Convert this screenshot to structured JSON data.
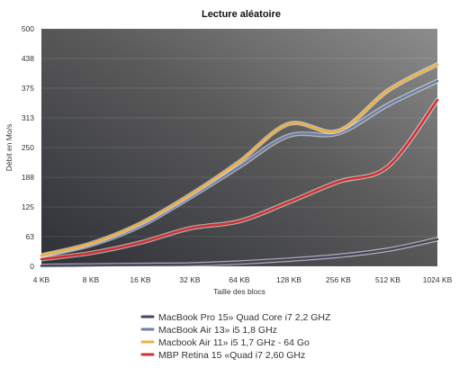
{
  "chart_data": {
    "type": "line",
    "title": "Lecture aléatoire",
    "xlabel": "Taille des blocs",
    "ylabel": "Débit en Mo/s",
    "categories": [
      "4 KB",
      "8 KB",
      "16 KB",
      "32 KB",
      "64 KB",
      "128 KB",
      "256 KB",
      "512 KB",
      "1024 KB"
    ],
    "y_ticks": [
      "0",
      "63",
      "125",
      "188",
      "250",
      "313",
      "375",
      "438",
      "500"
    ],
    "ylim": [
      0,
      500
    ],
    "grid": "horizontal",
    "legend_position": "bottom",
    "series": [
      {
        "name": "MacBook Pro 15» Quad Core i7 2,2 GHZ",
        "color": "#4a4560",
        "values": [
          1,
          2,
          3,
          4,
          8,
          14,
          22,
          35,
          57
        ]
      },
      {
        "name": "MacBook Air 13» i5 1,8 GHz",
        "color": "#6f7fa8",
        "values": [
          22,
          45,
          85,
          145,
          210,
          275,
          280,
          340,
          390
        ]
      },
      {
        "name": "Macbook Air 11» i5 1,7 GHz - 64 Go",
        "color": "#f0b040",
        "values": [
          23,
          48,
          90,
          150,
          220,
          300,
          285,
          370,
          425
        ]
      },
      {
        "name": "MBP Retina 15 «Quad i7 2,60 GHz",
        "color": "#d43030",
        "values": [
          15,
          28,
          50,
          80,
          95,
          135,
          178,
          210,
          350
        ]
      }
    ]
  }
}
